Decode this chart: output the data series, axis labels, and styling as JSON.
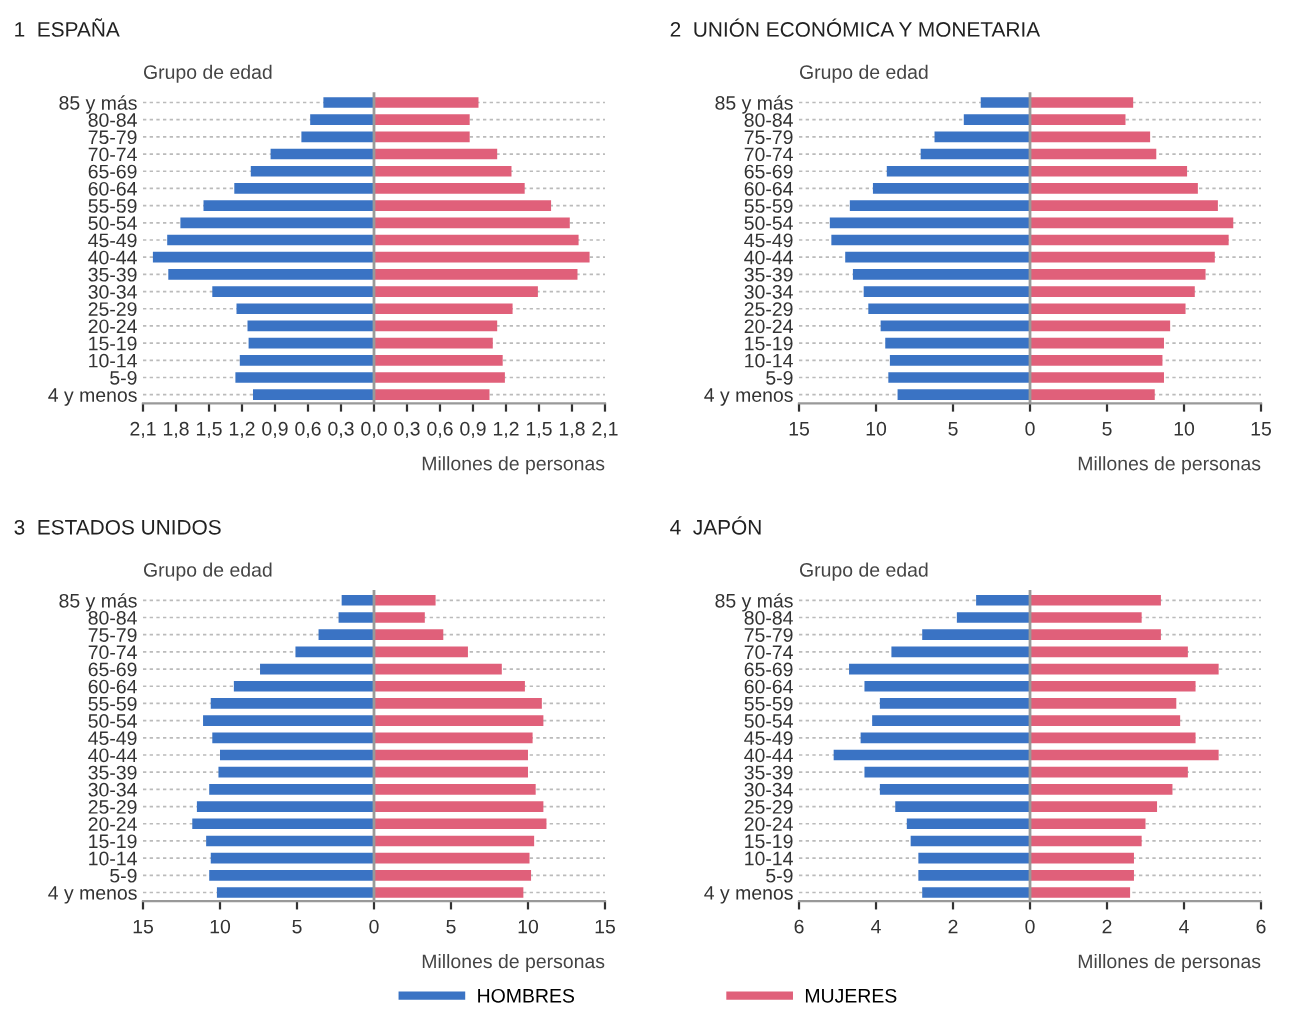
{
  "chart_data": [
    {
      "type": "bar",
      "orientation": "horizontal",
      "title": "1  ESPAÑA",
      "ylabel": "Grupo de edad",
      "xlabel": "Millones de personas",
      "categories": [
        "85 y más",
        "80-84",
        "75-79",
        "70-74",
        "65-69",
        "60-64",
        "55-59",
        "50-54",
        "45-49",
        "40-44",
        "35-39",
        "30-34",
        "25-29",
        "20-24",
        "15-19",
        "10-14",
        "5-9",
        "4 y menos"
      ],
      "series": [
        {
          "name": "HOMBRES",
          "color": "#3a73c4",
          "values": [
            -0.46,
            -0.58,
            -0.66,
            -0.94,
            -1.12,
            -1.27,
            -1.55,
            -1.76,
            -1.88,
            -2.01,
            -1.87,
            -1.47,
            -1.25,
            -1.15,
            -1.14,
            -1.22,
            -1.26,
            -1.1
          ]
        },
        {
          "name": "MUJERES",
          "color": "#e0607a",
          "values": [
            0.95,
            0.87,
            0.87,
            1.12,
            1.25,
            1.37,
            1.61,
            1.78,
            1.86,
            1.96,
            1.85,
            1.49,
            1.26,
            1.12,
            1.08,
            1.17,
            1.19,
            1.05
          ]
        }
      ],
      "xlim": [
        -2.1,
        2.1
      ],
      "xticks": [
        {
          "value": -2.1,
          "label": "2,1"
        },
        {
          "value": -1.8,
          "label": "1,8"
        },
        {
          "value": -1.5,
          "label": "1,5"
        },
        {
          "value": -1.2,
          "label": "1,2"
        },
        {
          "value": -0.9,
          "label": "0,9"
        },
        {
          "value": -0.6,
          "label": "0,6"
        },
        {
          "value": -0.3,
          "label": "0,3"
        },
        {
          "value": 0,
          "label": "0,0"
        },
        {
          "value": 0.3,
          "label": "0,3"
        },
        {
          "value": 0.6,
          "label": "0,6"
        },
        {
          "value": 0.9,
          "label": "0,9"
        },
        {
          "value": 1.2,
          "label": "1,2"
        },
        {
          "value": 1.5,
          "label": "1,5"
        },
        {
          "value": 1.8,
          "label": "1,8"
        },
        {
          "value": 2.1,
          "label": "2,1"
        }
      ],
      "ref_lines": [
        {
          "axis": "x",
          "value": 0,
          "color": "#999999"
        }
      ],
      "grid": "y",
      "stacked": true,
      "legend": "bottom"
    },
    {
      "type": "bar",
      "orientation": "horizontal",
      "title": "2  UNIÓN ECONÓMICA Y MONETARIA",
      "ylabel": "Grupo de edad",
      "xlabel": "Millones de personas",
      "categories": [
        "85 y más",
        "80-84",
        "75-79",
        "70-74",
        "65-69",
        "60-64",
        "55-59",
        "50-54",
        "45-49",
        "40-44",
        "35-39",
        "30-34",
        "25-29",
        "20-24",
        "15-19",
        "10-14",
        "5-9",
        "4 y menos"
      ],
      "series": [
        {
          "color": "#3a73c4",
          "values": [
            -3.2,
            -4.3,
            -6.2,
            -7.1,
            -9.3,
            -10.2,
            -11.7,
            -13.0,
            -12.9,
            -12.0,
            -11.5,
            -10.8,
            -10.5,
            -9.7,
            -9.4,
            -9.1,
            -9.2,
            -8.6
          ]
        },
        {
          "color": "#e0607a",
          "values": [
            6.7,
            6.2,
            7.8,
            8.2,
            10.2,
            10.9,
            12.2,
            13.2,
            12.9,
            12.0,
            11.4,
            10.7,
            10.1,
            9.1,
            8.7,
            8.6,
            8.7,
            8.1
          ]
        }
      ],
      "xlim": [
        -15,
        15
      ],
      "xticks": [
        {
          "value": -15,
          "label": "15"
        },
        {
          "value": -10,
          "label": "10"
        },
        {
          "value": -5,
          "label": "5"
        },
        0,
        5,
        10,
        15
      ],
      "ref_lines": [
        {
          "axis": "x",
          "value": 0,
          "color": "#999999"
        }
      ],
      "grid": "y",
      "stacked": true
    },
    {
      "type": "bar",
      "orientation": "horizontal",
      "title": "3  ESTADOS UNIDOS",
      "ylabel": "Grupo de edad",
      "xlabel": "Millones de personas",
      "categories": [
        "85 y más",
        "80-84",
        "75-79",
        "70-74",
        "65-69",
        "60-64",
        "55-59",
        "50-54",
        "45-49",
        "40-44",
        "35-39",
        "30-34",
        "25-29",
        "20-24",
        "15-19",
        "10-14",
        "5-9",
        "4 y menos"
      ],
      "series": [
        {
          "color": "#3a73c4",
          "values": [
            -2.1,
            -2.3,
            -3.6,
            -5.1,
            -7.4,
            -9.1,
            -10.6,
            -11.1,
            -10.5,
            -10.0,
            -10.1,
            -10.7,
            -11.5,
            -11.8,
            -10.9,
            -10.6,
            -10.7,
            -10.2
          ]
        },
        {
          "color": "#e0607a",
          "values": [
            4.0,
            3.3,
            4.5,
            6.1,
            8.3,
            9.8,
            10.9,
            11.0,
            10.3,
            10.0,
            10.0,
            10.5,
            11.0,
            11.2,
            10.4,
            10.1,
            10.2,
            9.7
          ]
        }
      ],
      "xlim": [
        -15,
        15
      ],
      "xticks": [
        {
          "value": -15,
          "label": "15"
        },
        {
          "value": -10,
          "label": "10"
        },
        {
          "value": -5,
          "label": "5"
        },
        0,
        5,
        10,
        15
      ],
      "ref_lines": [
        {
          "axis": "x",
          "value": 0,
          "color": "#999999"
        }
      ],
      "grid": "y",
      "stacked": true
    },
    {
      "type": "bar",
      "orientation": "horizontal",
      "title": "4  JAPÓN",
      "ylabel": "Grupo de edad",
      "xlabel": "Millones de personas",
      "categories": [
        "85 y más",
        "80-84",
        "75-79",
        "70-74",
        "65-69",
        "60-64",
        "55-59",
        "50-54",
        "45-49",
        "40-44",
        "35-39",
        "30-34",
        "25-29",
        "20-24",
        "15-19",
        "10-14",
        "5-9",
        "4 y menos"
      ],
      "series": [
        {
          "color": "#3a73c4",
          "values": [
            -1.4,
            -1.9,
            -2.8,
            -3.6,
            -4.7,
            -4.3,
            -3.9,
            -4.1,
            -4.4,
            -5.1,
            -4.3,
            -3.9,
            -3.5,
            -3.2,
            -3.1,
            -2.9,
            -2.9,
            -2.8
          ]
        },
        {
          "color": "#e0607a",
          "values": [
            3.4,
            2.9,
            3.4,
            4.1,
            4.9,
            4.3,
            3.8,
            3.9,
            4.3,
            4.9,
            4.1,
            3.7,
            3.3,
            3.0,
            2.9,
            2.7,
            2.7,
            2.6
          ]
        }
      ],
      "xlim": [
        -6,
        6
      ],
      "xticks": [
        {
          "value": -6,
          "label": "6"
        },
        {
          "value": -4,
          "label": "4"
        },
        {
          "value": -2,
          "label": "2"
        },
        0,
        2,
        4,
        6
      ],
      "ref_lines": [
        {
          "axis": "x",
          "value": 0,
          "color": "#999999"
        }
      ],
      "grid": "y",
      "stacked": true
    }
  ]
}
